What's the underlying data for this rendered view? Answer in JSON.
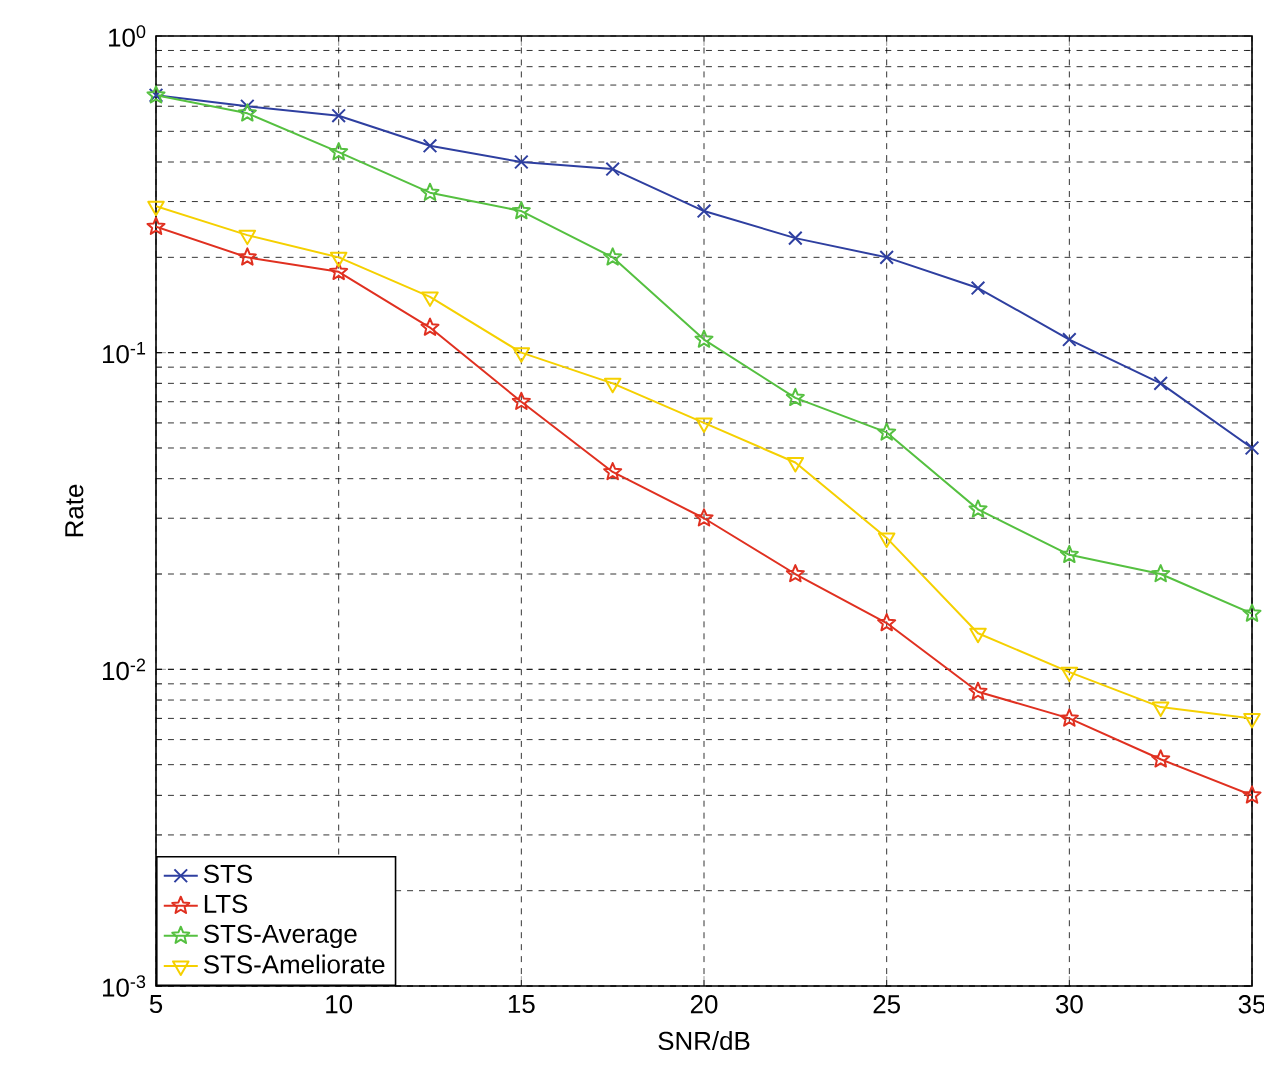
{
  "chart_data": {
    "type": "line",
    "xlabel": "SNR/dB",
    "ylabel": "Rate",
    "x": [
      5,
      7.5,
      10,
      12.5,
      15,
      17.5,
      20,
      22.5,
      25,
      27.5,
      30,
      32.5,
      35
    ],
    "series": [
      {
        "name": "STS",
        "color": "#2e3fa0",
        "marker": "cross",
        "values": [
          0.65,
          0.6,
          0.56,
          0.45,
          0.4,
          0.38,
          0.28,
          0.23,
          0.2,
          0.16,
          0.11,
          0.08,
          0.05
        ]
      },
      {
        "name": "LTS",
        "color": "#e03020",
        "marker": "star",
        "values": [
          0.25,
          0.2,
          0.18,
          0.12,
          0.07,
          0.042,
          0.03,
          0.02,
          0.014,
          0.0085,
          0.007,
          0.0052,
          0.004
        ]
      },
      {
        "name": "STS-Average",
        "color": "#55c040",
        "marker": "star",
        "values": [
          0.65,
          0.57,
          0.43,
          0.32,
          0.28,
          0.2,
          0.11,
          0.072,
          0.056,
          0.032,
          0.023,
          0.02,
          0.015
        ]
      },
      {
        "name": "STS-Ameliorate",
        "color": "#f5d000",
        "marker": "triangle",
        "values": [
          0.29,
          0.235,
          0.2,
          0.15,
          0.1,
          0.08,
          0.06,
          0.045,
          0.026,
          0.013,
          0.0098,
          0.0076,
          0.007
        ]
      }
    ],
    "log": "y",
    "xlim": [
      5,
      35
    ],
    "ylim": [
      0.001,
      1
    ],
    "xticks": [
      5,
      10,
      15,
      20,
      25,
      30,
      35
    ],
    "yticks": [
      {
        "value": 0.001,
        "label": "10$^{-3}$"
      },
      {
        "value": 0.01,
        "label": "10$^{-2}$"
      },
      {
        "value": 0.1,
        "label": "10$^{-1}$"
      },
      {
        "value": 1,
        "label": "10$^{0}$"
      }
    ],
    "grid": true,
    "legend": "bottom left",
    "line_style": "solid"
  }
}
